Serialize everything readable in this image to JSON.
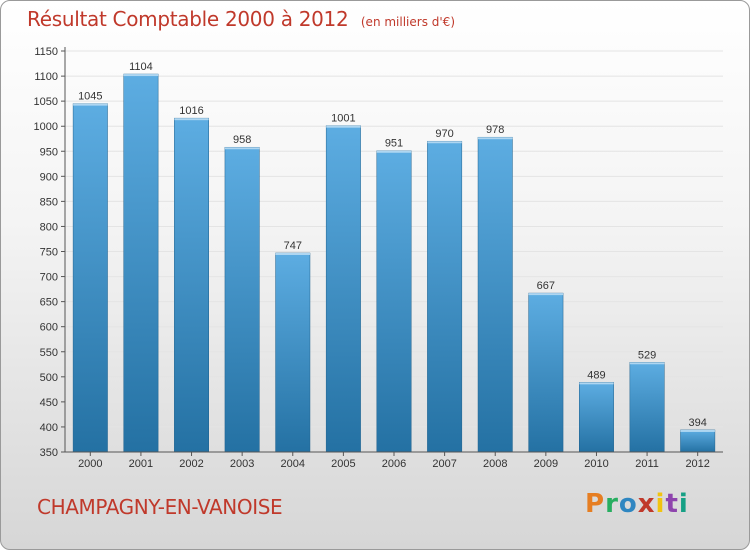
{
  "header": {
    "title": "Résultat Comptable 2000 à 2012",
    "unit": "(en milliers d'€)"
  },
  "footer": {
    "commune": "CHAMPAGNY-EN-VANOISE",
    "logo_text": "Proxiti",
    "logo_colors": [
      "#e67e22",
      "#27ae60",
      "#2e86c1",
      "#c0392b",
      "#f1c40f",
      "#8e44ad",
      "#16a085"
    ]
  },
  "colors": {
    "bar_top": "#5dade2",
    "bar_bottom": "#2471a3",
    "grid": "#e4e4e4",
    "axis": "#555555",
    "accent": "#c0392b"
  },
  "chart_data": {
    "type": "bar",
    "categories": [
      "2000",
      "2001",
      "2002",
      "2003",
      "2004",
      "2005",
      "2006",
      "2007",
      "2008",
      "2009",
      "2010",
      "2011",
      "2012"
    ],
    "values": [
      1045,
      1104,
      1016,
      958,
      747,
      1001,
      951,
      970,
      978,
      667,
      489,
      529,
      394
    ],
    "yticks": [
      "350",
      "400",
      "450",
      "500",
      "550",
      "600",
      "650",
      "700",
      "750",
      "800",
      "850",
      "900",
      "950",
      "1000",
      "1050",
      "1100",
      "1150"
    ],
    "ylim": [
      350,
      1150
    ],
    "grid": true,
    "legend": "none",
    "title": "Résultat Comptable 2000 à 2012",
    "ylabel": "(en milliers d'€)"
  }
}
